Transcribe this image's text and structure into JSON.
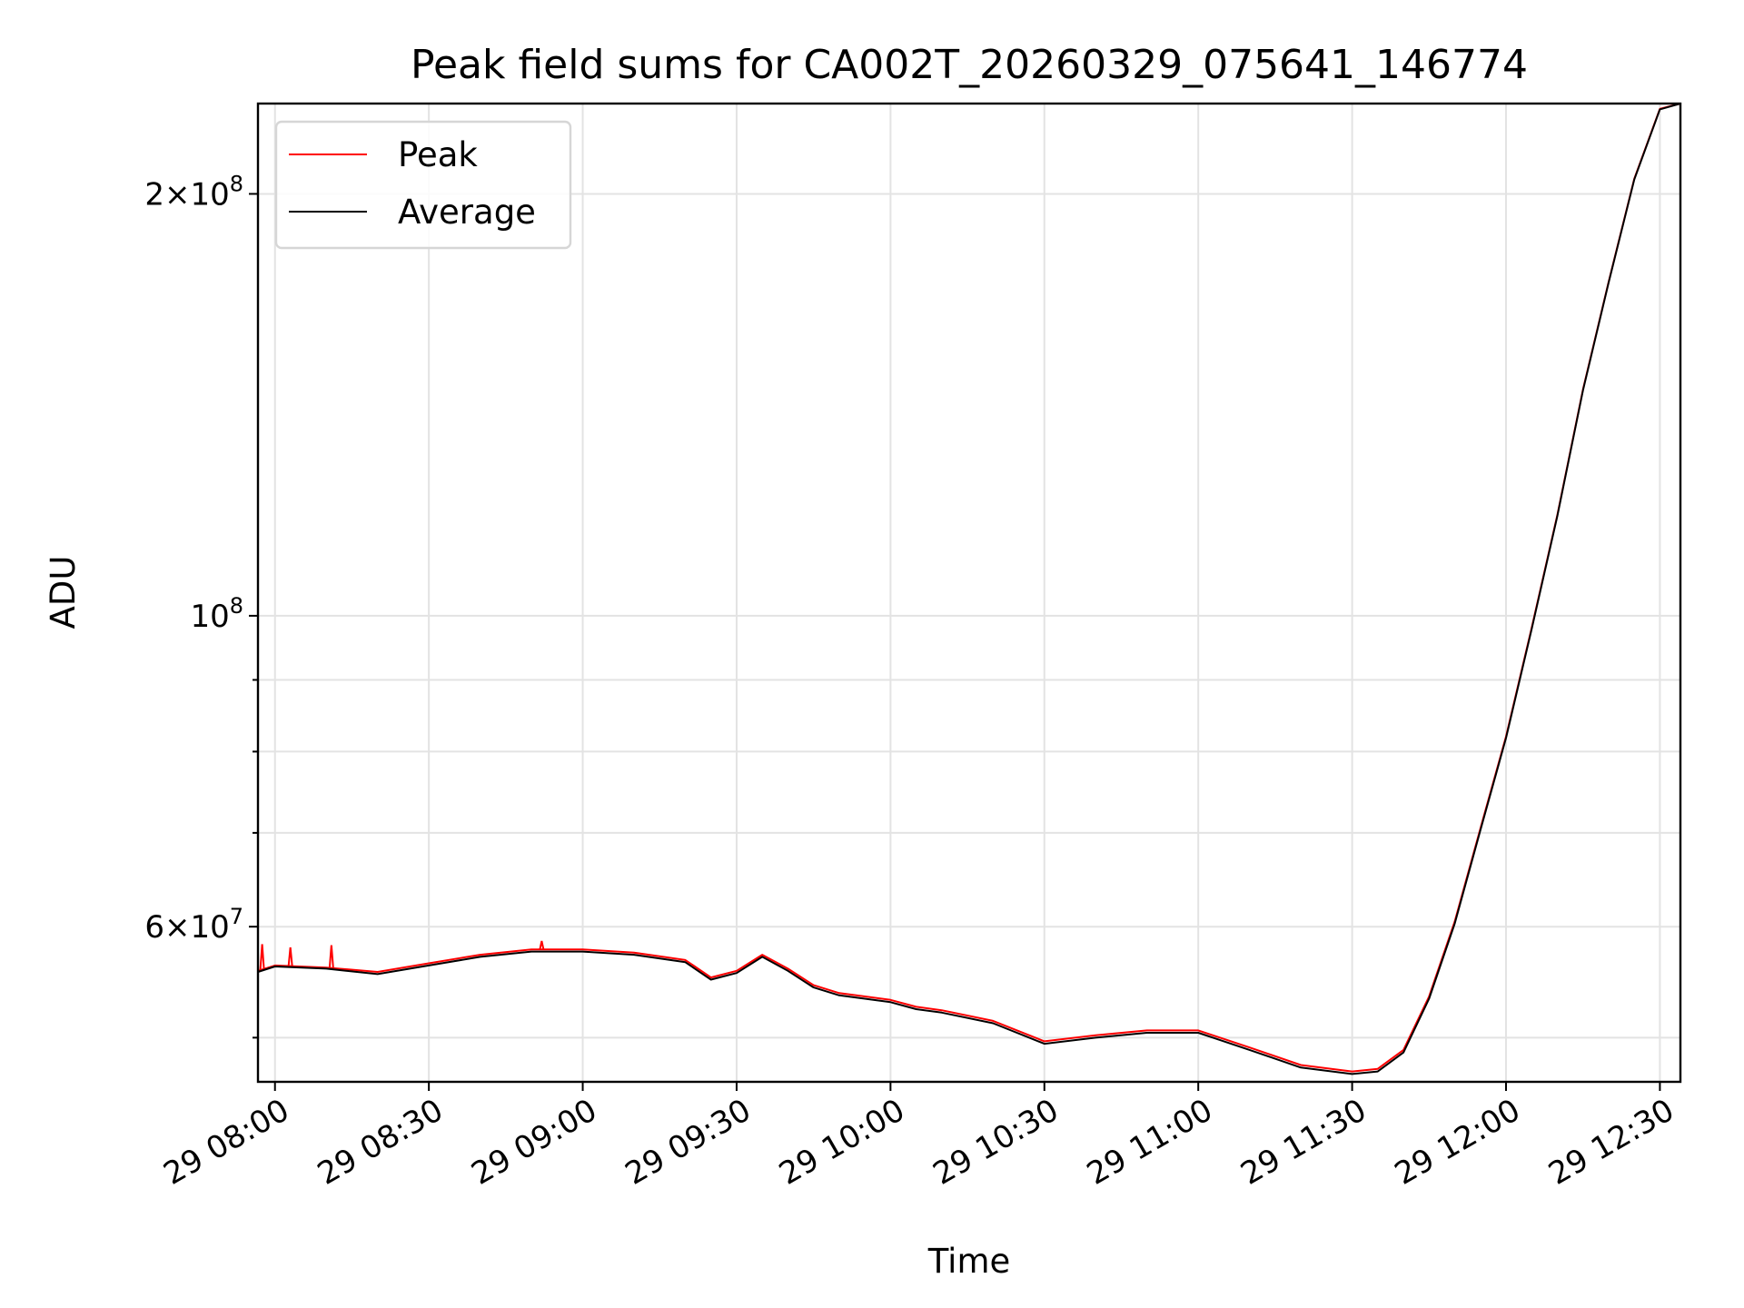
{
  "chart_data": {
    "type": "line",
    "title": "Peak field sums for CA002T_20260329_075641_146774",
    "xlabel": "Time",
    "ylabel": "ADU",
    "x_axis": {
      "kind": "datetime",
      "range": [
        "2026-03-29T07:56:41",
        "2026-03-29T12:34:00"
      ],
      "ticks": [
        {
          "value": "2026-03-29T08:00",
          "label": "29 08:00"
        },
        {
          "value": "2026-03-29T08:30",
          "label": "29 08:30"
        },
        {
          "value": "2026-03-29T09:00",
          "label": "29 09:00"
        },
        {
          "value": "2026-03-29T09:30",
          "label": "29 09:30"
        },
        {
          "value": "2026-03-29T10:00",
          "label": "29 10:00"
        },
        {
          "value": "2026-03-29T10:30",
          "label": "29 10:30"
        },
        {
          "value": "2026-03-29T11:00",
          "label": "29 11:00"
        },
        {
          "value": "2026-03-29T11:30",
          "label": "29 11:30"
        },
        {
          "value": "2026-03-29T12:00",
          "label": "29 12:00"
        },
        {
          "value": "2026-03-29T12:30",
          "label": "29 12:30"
        }
      ],
      "tick_label_rotation": "30deg"
    },
    "y_axis": {
      "scale": "log",
      "range": [
        46500000,
        232000000
      ],
      "major_ticks": [
        {
          "value": 60000000,
          "base": "6",
          "exp": "7"
        },
        {
          "value": 100000000,
          "base": "",
          "exp": "8"
        },
        {
          "value": 200000000,
          "base": "2",
          "exp": "8"
        }
      ],
      "minor_ticks": [
        50000000,
        70000000,
        80000000,
        90000000
      ]
    },
    "grid": true,
    "legend": {
      "position": "top-left",
      "entries": [
        {
          "name": "Peak",
          "color": "#ff0000"
        },
        {
          "name": "Average",
          "color": "#000000"
        }
      ]
    },
    "series": [
      {
        "name": "Peak",
        "color": "#ff0000",
        "points": [
          [
            "2026-03-29T07:56:41",
            55800000
          ],
          [
            "2026-03-29T08:00",
            56300000
          ],
          [
            "2026-03-29T08:10",
            56100000
          ],
          [
            "2026-03-29T08:20",
            55700000
          ],
          [
            "2026-03-29T08:30",
            56500000
          ],
          [
            "2026-03-29T08:40",
            57300000
          ],
          [
            "2026-03-29T08:50",
            57800000
          ],
          [
            "2026-03-29T09:00",
            57800000
          ],
          [
            "2026-03-29T09:10",
            57500000
          ],
          [
            "2026-03-29T09:20",
            56800000
          ],
          [
            "2026-03-29T09:25",
            55200000
          ],
          [
            "2026-03-29T09:30",
            55800000
          ],
          [
            "2026-03-29T09:35",
            57300000
          ],
          [
            "2026-03-29T09:40",
            56000000
          ],
          [
            "2026-03-29T09:45",
            54500000
          ],
          [
            "2026-03-29T09:50",
            53800000
          ],
          [
            "2026-03-29T10:00",
            53200000
          ],
          [
            "2026-03-29T10:05",
            52600000
          ],
          [
            "2026-03-29T10:10",
            52300000
          ],
          [
            "2026-03-29T10:20",
            51400000
          ],
          [
            "2026-03-29T10:30",
            49700000
          ],
          [
            "2026-03-29T10:40",
            50200000
          ],
          [
            "2026-03-29T10:50",
            50600000
          ],
          [
            "2026-03-29T11:00",
            50600000
          ],
          [
            "2026-03-29T11:10",
            49200000
          ],
          [
            "2026-03-29T11:20",
            47800000
          ],
          [
            "2026-03-29T11:30",
            47300000
          ],
          [
            "2026-03-29T11:35",
            47500000
          ],
          [
            "2026-03-29T11:40",
            49000000
          ],
          [
            "2026-03-29T11:45",
            53500000
          ],
          [
            "2026-03-29T11:50",
            60500000
          ],
          [
            "2026-03-29T11:55",
            70500000
          ],
          [
            "2026-03-29T12:00",
            82000000
          ],
          [
            "2026-03-29T12:05",
            98000000
          ],
          [
            "2026-03-29T12:10",
            118000000
          ],
          [
            "2026-03-29T12:15",
            145000000
          ],
          [
            "2026-03-29T12:20",
            173000000
          ],
          [
            "2026-03-29T12:25",
            205000000
          ],
          [
            "2026-03-29T12:30",
            230000000
          ],
          [
            "2026-03-29T12:34",
            232000000
          ]
        ],
        "spikes": [
          [
            "2026-03-29T07:57:30",
            58300000
          ],
          [
            "2026-03-29T08:03",
            58000000
          ],
          [
            "2026-03-29T08:11",
            58200000
          ],
          [
            "2026-03-29T08:52",
            58600000
          ]
        ]
      },
      {
        "name": "Average",
        "color": "#000000",
        "points": [
          [
            "2026-03-29T07:56:41",
            55700000
          ],
          [
            "2026-03-29T08:00",
            56200000
          ],
          [
            "2026-03-29T08:10",
            56000000
          ],
          [
            "2026-03-29T08:20",
            55500000
          ],
          [
            "2026-03-29T08:30",
            56300000
          ],
          [
            "2026-03-29T08:40",
            57100000
          ],
          [
            "2026-03-29T08:50",
            57600000
          ],
          [
            "2026-03-29T09:00",
            57600000
          ],
          [
            "2026-03-29T09:10",
            57300000
          ],
          [
            "2026-03-29T09:20",
            56600000
          ],
          [
            "2026-03-29T09:25",
            55000000
          ],
          [
            "2026-03-29T09:30",
            55600000
          ],
          [
            "2026-03-29T09:35",
            57100000
          ],
          [
            "2026-03-29T09:40",
            55800000
          ],
          [
            "2026-03-29T09:45",
            54300000
          ],
          [
            "2026-03-29T09:50",
            53600000
          ],
          [
            "2026-03-29T10:00",
            53000000
          ],
          [
            "2026-03-29T10:05",
            52400000
          ],
          [
            "2026-03-29T10:10",
            52100000
          ],
          [
            "2026-03-29T10:20",
            51200000
          ],
          [
            "2026-03-29T10:30",
            49500000
          ],
          [
            "2026-03-29T10:40",
            50000000
          ],
          [
            "2026-03-29T10:50",
            50400000
          ],
          [
            "2026-03-29T11:00",
            50400000
          ],
          [
            "2026-03-29T11:10",
            49000000
          ],
          [
            "2026-03-29T11:20",
            47600000
          ],
          [
            "2026-03-29T11:30",
            47100000
          ],
          [
            "2026-03-29T11:35",
            47300000
          ],
          [
            "2026-03-29T11:40",
            48800000
          ],
          [
            "2026-03-29T11:45",
            53300000
          ],
          [
            "2026-03-29T11:50",
            60300000
          ],
          [
            "2026-03-29T11:55",
            70300000
          ],
          [
            "2026-03-29T12:00",
            81800000
          ],
          [
            "2026-03-29T12:05",
            97800000
          ],
          [
            "2026-03-29T12:10",
            117800000
          ],
          [
            "2026-03-29T12:15",
            144800000
          ],
          [
            "2026-03-29T12:20",
            172800000
          ],
          [
            "2026-03-29T12:25",
            204800000
          ],
          [
            "2026-03-29T12:30",
            229800000
          ],
          [
            "2026-03-29T12:34",
            232000000
          ]
        ]
      }
    ]
  }
}
